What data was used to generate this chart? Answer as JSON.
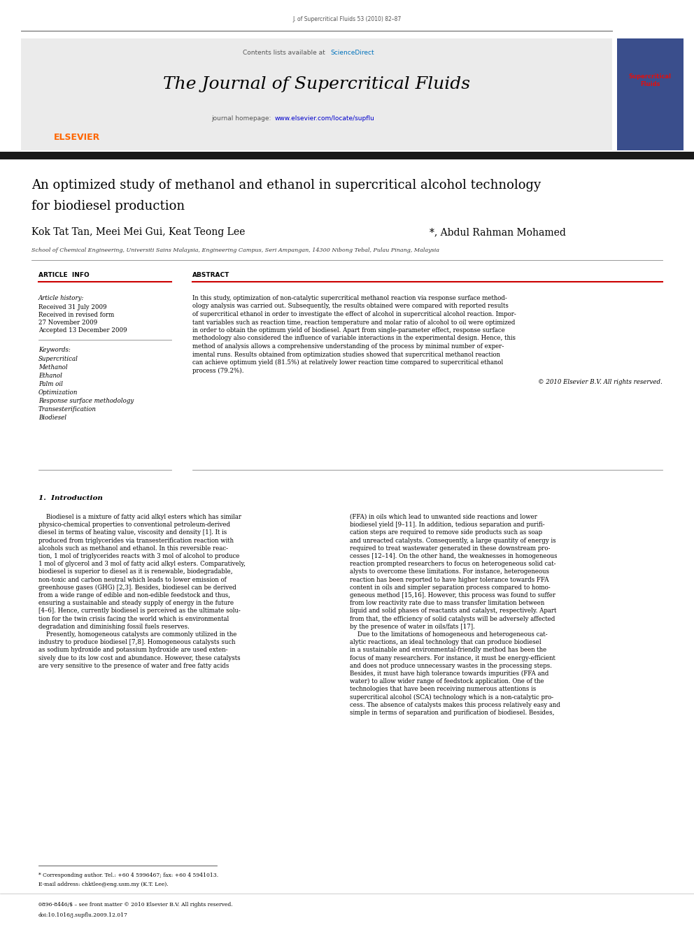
{
  "page_width": 9.92,
  "page_height": 13.23,
  "background_color": "#ffffff",
  "header_journal_ref": "J. of Supercritical Fluids 53 (2010) 82–87",
  "header_bg_color": "#ebebeb",
  "header_contents_text": "Contents lists available at ",
  "header_sciencedirect": "ScienceDirect",
  "sciencedirect_link_color": "#0072bc",
  "journal_title": "The Journal of Supercritical Fluids",
  "journal_homepage_label": "journal homepage: ",
  "journal_homepage_url": "www.elsevier.com/locate/supflu",
  "journal_homepage_color": "#0000cc",
  "article_title_line1": "An optimized study of methanol and ethanol in supercritical alcohol technology",
  "article_title_line2": "for biodiesel production",
  "authors_part1": "Kok Tat Tan, Meei Mei Gui, Keat Teong Lee",
  "authors_part2": "*, Abdul Rahman Mohamed",
  "affiliation": "School of Chemical Engineering, Universiti Sains Malaysia, Engineering Campus, Seri Ampangan, 14300 Nibong Tebal, Pulau Pinang, Malaysia",
  "article_info_label": "ARTICLE  INFO",
  "abstract_label": "ABSTRACT",
  "article_history_label": "Article history:",
  "received1": "Received 31 July 2009",
  "received2": "Received in revised form",
  "received2b": "27 November 2009",
  "accepted": "Accepted 13 December 2009",
  "keywords_label": "Keywords:",
  "keywords": [
    "Supercritical",
    "Methanol",
    "Ethanol",
    "Palm oil",
    "Optimization",
    "Response surface methodology",
    "Transesterification",
    "Biodiesel"
  ],
  "copyright": "© 2010 Elsevier B.V. All rights reserved.",
  "section1_title": "1.  Introduction",
  "elsevier_color": "#ff6600",
  "dark_bar_color": "#1a1a1a",
  "red_line_color": "#cc0000",
  "footer_note": "* Corresponding author. Tel.: +60 4 5996467; fax: +60 4 5941013.",
  "footer_email": "E-mail address: chktlee@eng.usm.my (K.T. Lee).",
  "footer_issn": "0896-8446/$ – see front matter © 2010 Elsevier B.V. All rights reserved.",
  "footer_doi": "doi:10.1016/j.supflu.2009.12.017",
  "abstract_lines": [
    "In this study, optimization of non-catalytic supercritical methanol reaction via response surface method-",
    "ology analysis was carried out. Subsequently, the results obtained were compared with reported results",
    "of supercritical ethanol in order to investigate the effect of alcohol in supercritical alcohol reaction. Impor-",
    "tant variables such as reaction time, reaction temperature and molar ratio of alcohol to oil were optimized",
    "in order to obtain the optimum yield of biodiesel. Apart from single-parameter effect, response surface",
    "methodology also considered the influence of variable interactions in the experimental design. Hence, this",
    "method of analysis allows a comprehensive understanding of the process by minimal number of exper-",
    "imental runs. Results obtained from optimization studies showed that supercritical methanol reaction",
    "can achieve optimum yield (81.5%) at relatively lower reaction time compared to supercritical ethanol",
    "process (79.2%)."
  ],
  "col1_lines": [
    "    Biodiesel is a mixture of fatty acid alkyl esters which has similar",
    "physico-chemical properties to conventional petroleum-derived",
    "diesel in terms of heating value, viscosity and density [1]. It is",
    "produced from triglycerides via transesterification reaction with",
    "alcohols such as methanol and ethanol. In this reversible reac-",
    "tion, 1 mol of triglycerides reacts with 3 mol of alcohol to produce",
    "1 mol of glycerol and 3 mol of fatty acid alkyl esters. Comparatively,",
    "biodiesel is superior to diesel as it is renewable, biodegradable,",
    "non-toxic and carbon neutral which leads to lower emission of",
    "greenhouse gases (GHG) [2,3]. Besides, biodiesel can be derived",
    "from a wide range of edible and non-edible feedstock and thus,",
    "ensuring a sustainable and steady supply of energy in the future",
    "[4–6]. Hence, currently biodiesel is perceived as the ultimate solu-",
    "tion for the twin crisis facing the world which is environmental",
    "degradation and diminishing fossil fuels reserves.",
    "    Presently, homogeneous catalysts are commonly utilized in the",
    "industry to produce biodiesel [7,8]. Homogeneous catalysts such",
    "as sodium hydroxide and potassium hydroxide are used exten-",
    "sively due to its low cost and abundance. However, these catalysts",
    "are very sensitive to the presence of water and free fatty acids"
  ],
  "col2_lines": [
    "(FFA) in oils which lead to unwanted side reactions and lower",
    "biodiesel yield [9–11]. In addition, tedious separation and purifi-",
    "cation steps are required to remove side products such as soap",
    "and unreacted catalysts. Consequently, a large quantity of energy is",
    "required to treat wastewater generated in these downstream pro-",
    "cesses [12–14]. On the other hand, the weaknesses in homogeneous",
    "reaction prompted researchers to focus on heterogeneous solid cat-",
    "alysts to overcome these limitations. For instance, heterogeneous",
    "reaction has been reported to have higher tolerance towards FFA",
    "content in oils and simpler separation process compared to homo-",
    "geneous method [15,16]. However, this process was found to suffer",
    "from low reactivity rate due to mass transfer limitation between",
    "liquid and solid phases of reactants and catalyst, respectively. Apart",
    "from that, the efficiency of solid catalysts will be adversely affected",
    "by the presence of water in oils/fats [17].",
    "    Due to the limitations of homogeneous and heterogeneous cat-",
    "alytic reactions, an ideal technology that can produce biodiesel",
    "in a sustainable and environmental-friendly method has been the",
    "focus of many researchers. For instance, it must be energy-efficient",
    "and does not produce unnecessary wastes in the processing steps.",
    "Besides, it must have high tolerance towards impurities (FFA and",
    "water) to allow wider range of feedstock application. One of the",
    "technologies that have been receiving numerous attentions is",
    "supercritical alcohol (SCA) technology which is a non-catalytic pro-",
    "cess. The absence of catalysts makes this process relatively easy and",
    "simple in terms of separation and purification of biodiesel. Besides,"
  ]
}
